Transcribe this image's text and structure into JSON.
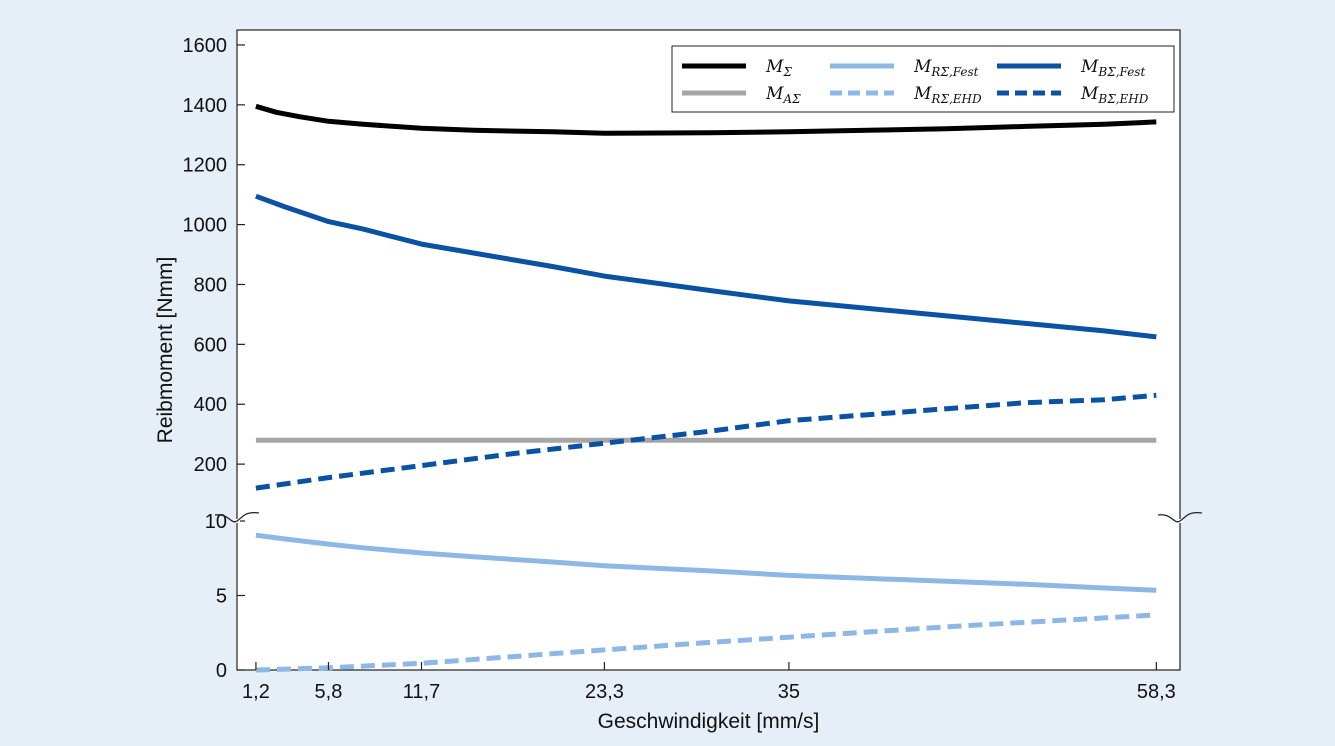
{
  "chart_data": {
    "type": "line",
    "xlabel": "Geschwindigkeit [mm/s]",
    "ylabel": "Reibmoment [Nmm]",
    "x_ticks": [
      "1,2",
      "5,8",
      "11,7",
      "23,3",
      "35",
      "58,3"
    ],
    "x_tick_values": [
      1.2,
      5.8,
      11.7,
      23.3,
      35,
      58.3
    ],
    "xlim": [
      0,
      59.8
    ],
    "axis_break": {
      "at": 10,
      "description": "broken y-axis"
    },
    "y_lower_ticks": [
      "0",
      "5",
      "10"
    ],
    "y_lower_tick_values": [
      0,
      5,
      10
    ],
    "y_lower_range": [
      0,
      10
    ],
    "y_upper_ticks": [
      "200",
      "400",
      "600",
      "800",
      "1000",
      "1200",
      "1400",
      "1600"
    ],
    "y_upper_tick_values": [
      200,
      400,
      600,
      800,
      1000,
      1200,
      1400,
      1600
    ],
    "y_upper_range": [
      10,
      1650
    ],
    "grid": false,
    "legend_position": "top-right",
    "series": [
      {
        "name": "M_Σ",
        "color": "#000000",
        "dash": "solid",
        "segment": "upper",
        "x": [
          1.2,
          2.5,
          4,
          5.8,
          8,
          11.7,
          15,
          20,
          23.3,
          30,
          35,
          40,
          45,
          50,
          55,
          58.3
        ],
        "y": [
          1395,
          1375,
          1360,
          1345,
          1335,
          1322,
          1315,
          1310,
          1305,
          1307,
          1310,
          1315,
          1320,
          1328,
          1335,
          1343
        ]
      },
      {
        "name": "M_AΣ",
        "color": "#a6a6a6",
        "dash": "solid",
        "segment": "upper",
        "x": [
          1.2,
          58.3
        ],
        "y": [
          280,
          280
        ]
      },
      {
        "name": "M_RΣ,Fest",
        "color": "#8db8e6",
        "dash": "solid",
        "segment": "lower",
        "x": [
          1.2,
          3,
          5.8,
          8,
          11.7,
          15,
          20,
          23.3,
          30,
          35,
          40,
          45,
          50,
          55,
          58.3
        ],
        "y": [
          9.05,
          8.8,
          8.45,
          8.2,
          7.85,
          7.6,
          7.25,
          7.0,
          6.65,
          6.35,
          6.15,
          5.95,
          5.75,
          5.5,
          5.35
        ]
      },
      {
        "name": "M_RΣ,EHD",
        "color": "#8db8e6",
        "dash": "dashed",
        "segment": "lower",
        "x": [
          1.2,
          5.8,
          11.7,
          17.5,
          23.3,
          30,
          35,
          40,
          45,
          50,
          55,
          58.3
        ],
        "y": [
          0.0,
          0.15,
          0.45,
          0.9,
          1.35,
          1.85,
          2.2,
          2.55,
          2.9,
          3.2,
          3.5,
          3.7
        ]
      },
      {
        "name": "M_BΣ,Fest",
        "color": "#0a52a3",
        "dash": "solid",
        "segment": "upper",
        "x": [
          1.2,
          3,
          5.8,
          8,
          11.7,
          15,
          20,
          23.3,
          30,
          35,
          40,
          45,
          50,
          55,
          58.3
        ],
        "y": [
          1095,
          1060,
          1010,
          985,
          935,
          905,
          860,
          828,
          780,
          745,
          720,
          695,
          670,
          645,
          625
        ]
      },
      {
        "name": "M_BΣ,EHD",
        "color": "#0a52a3",
        "dash": "dashed",
        "segment": "upper",
        "x": [
          1.2,
          5.8,
          11.7,
          17.5,
          23.3,
          30,
          35,
          40,
          45,
          50,
          55,
          58.3
        ],
        "y": [
          120,
          155,
          195,
          235,
          270,
          310,
          345,
          365,
          385,
          405,
          415,
          430
        ]
      }
    ],
    "legend": [
      {
        "main": "M",
        "sub": "Σ",
        "color": "#000000",
        "dash": "solid"
      },
      {
        "main": "M",
        "sub": "AΣ",
        "color": "#a6a6a6",
        "dash": "solid"
      },
      {
        "main": "M",
        "sub": "RΣ,Fest",
        "color": "#8db8e6",
        "dash": "solid"
      },
      {
        "main": "M",
        "sub": "RΣ,EHD",
        "color": "#8db8e6",
        "dash": "dashed"
      },
      {
        "main": "M",
        "sub": "BΣ,Fest",
        "color": "#0a52a3",
        "dash": "solid"
      },
      {
        "main": "M",
        "sub": "BΣ,EHD",
        "color": "#0a52a3",
        "dash": "dashed"
      }
    ]
  }
}
